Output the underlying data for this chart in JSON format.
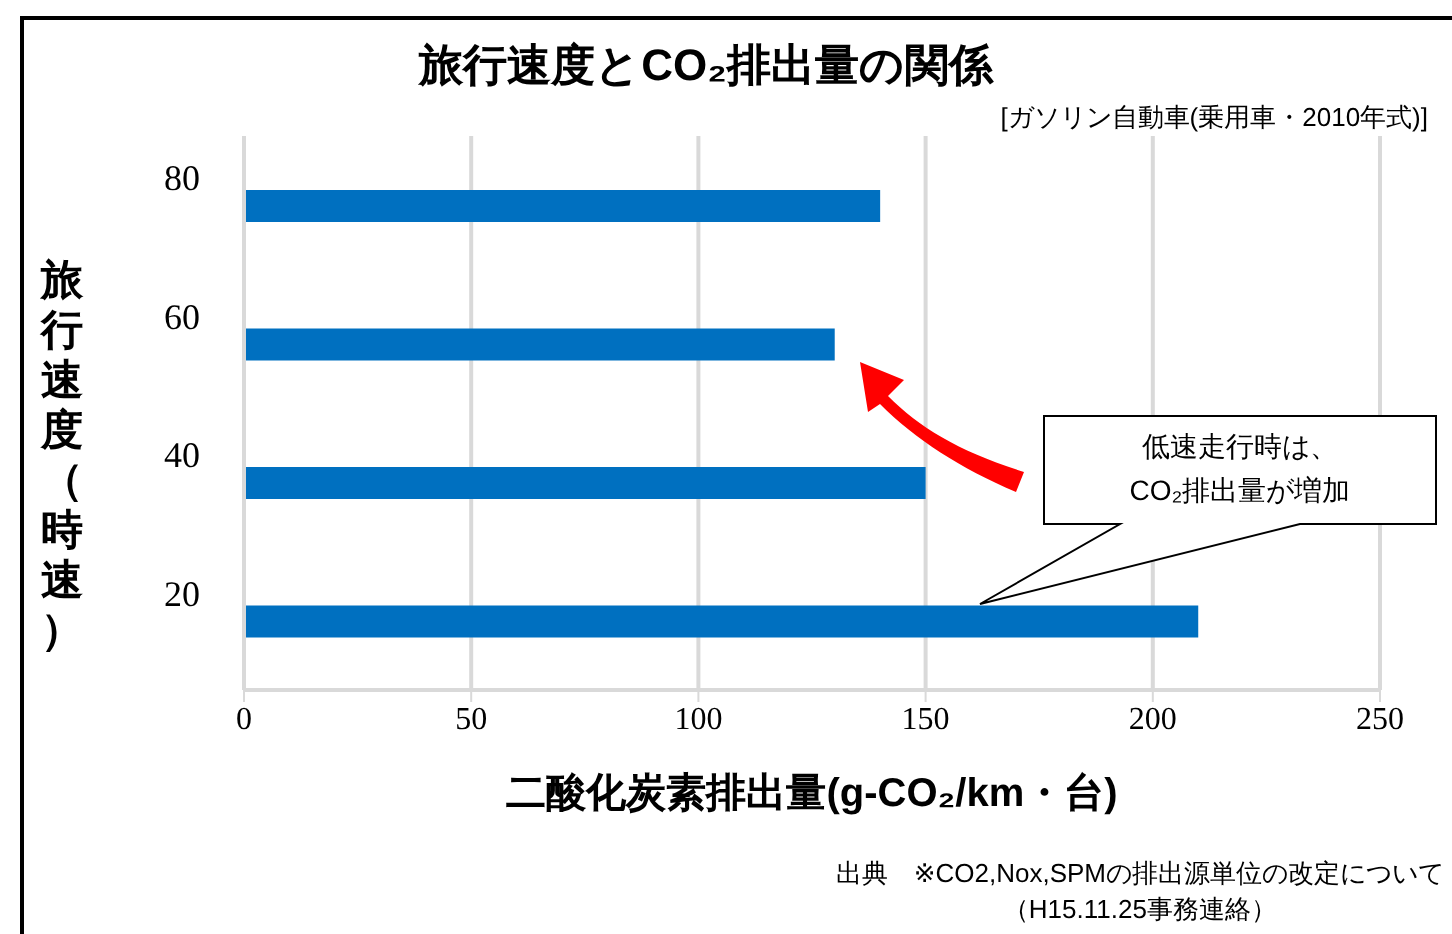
{
  "chart_data": {
    "type": "bar",
    "orientation": "horizontal",
    "title": "旅行速度とCO₂排出量の関係",
    "subtitle": "[ガソリン自動車(乗用車・2010年式)]",
    "xlabel": "二酸化炭素排出量(g-CO₂/km・台)",
    "ylabel": "旅行速度（時速）",
    "categories": [
      "80",
      "60",
      "40",
      "20"
    ],
    "values": [
      140,
      130,
      150,
      210
    ],
    "color": "#0070c0",
    "xlim": [
      0,
      250
    ],
    "xticks": [
      0,
      50,
      100,
      150,
      200,
      250
    ],
    "grid": "x",
    "annotations": [
      "低速走行時は、\nCO₂排出量が増加",
      "出典　※CO2,Nox,SPMの排出源単位の改定について",
      "（H15.11.25事務連絡）"
    ]
  }
}
